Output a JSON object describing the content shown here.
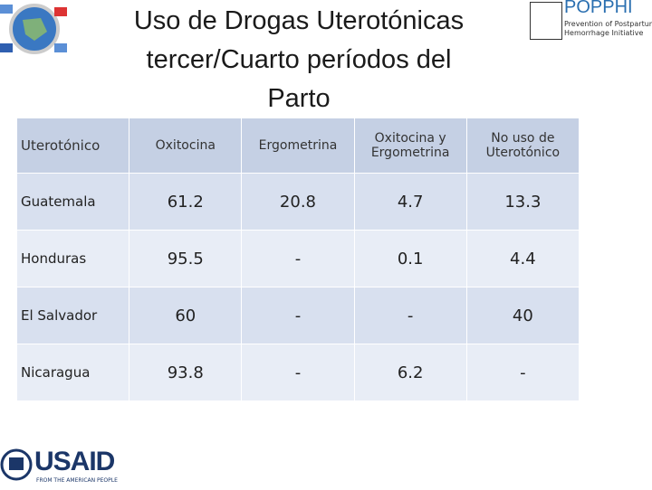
{
  "header": {
    "title_lines": [
      "Uso de Drogas Uterotónicas",
      "tercer/Cuarto períodos del",
      "Parto"
    ],
    "logo": {
      "name": "POPPHI",
      "tagline_lines": [
        "Prevention of Postpartum",
        "Hemorrhage Initiative"
      ]
    }
  },
  "table": {
    "columns": [
      "Uterotónico",
      "Oxitocina",
      "Ergometrina",
      "Oxitocina y Ergometrina",
      "No uso de Uterotónico"
    ],
    "rows": [
      [
        "Guatemala",
        "61.2",
        "20.8",
        "4.7",
        "13.3"
      ],
      [
        "Honduras",
        "95.5",
        "-",
        "0.1",
        "4.4"
      ],
      [
        "El Salvador",
        "60",
        "-",
        "-",
        "40"
      ],
      [
        "Nicaragua",
        "93.8",
        "-",
        "6.2",
        "-"
      ]
    ]
  },
  "footer": {
    "brand": "USAID",
    "tagline": "FROM THE AMERICAN PEOPLE"
  }
}
